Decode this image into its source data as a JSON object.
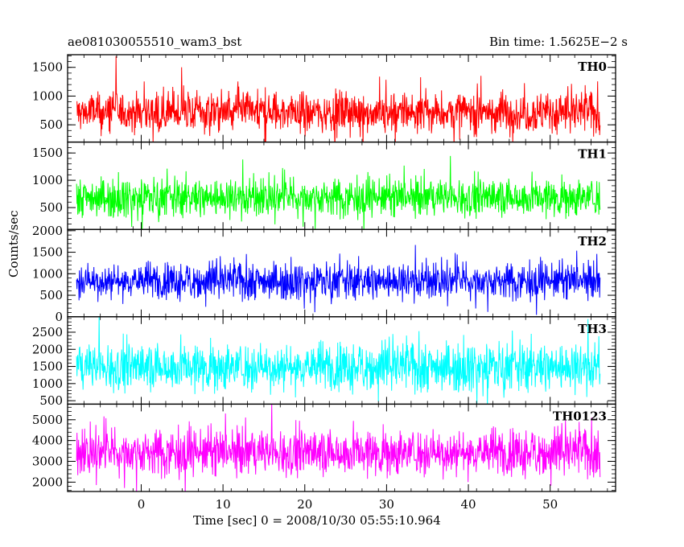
{
  "chart_data": {
    "type": "line",
    "title": "ae081030055510_wam3_bst",
    "bin_time_label": "Bin time: 1.5625E−2 s",
    "xlabel": "Time [sec] 0 = 2008/10/30 05:55:10.964",
    "ylabel": "Counts/sec",
    "xlim": [
      -9,
      58
    ],
    "x_ticks": [
      0,
      10,
      20,
      30,
      40,
      50
    ],
    "x_data_range": [
      -7.9,
      56.1
    ],
    "grid": false,
    "panels": [
      {
        "name": "TH0",
        "color": "#ff0000",
        "ylim": [
          200,
          1720
        ],
        "yticks": [
          500,
          1000,
          1500
        ],
        "mean": 720,
        "spread": 260
      },
      {
        "name": "TH1",
        "color": "#00ff00",
        "ylim": [
          100,
          1700
        ],
        "yticks": [
          500,
          1000,
          1500
        ],
        "mean": 690,
        "spread": 250
      },
      {
        "name": "TH2",
        "color": "#0000ff",
        "ylim": [
          0,
          2030
        ],
        "yticks": [
          0,
          500,
          1000,
          1500,
          2000
        ],
        "mean": 840,
        "spread": 300
      },
      {
        "name": "TH3",
        "color": "#00ffff",
        "ylim": [
          400,
          2950
        ],
        "yticks": [
          500,
          1000,
          1500,
          2000,
          2500
        ],
        "mean": 1500,
        "spread": 500
      },
      {
        "name": "TH0123",
        "color": "#ff00ff",
        "ylim": [
          1550,
          5750
        ],
        "yticks": [
          2000,
          3000,
          4000,
          5000
        ],
        "mean": 3450,
        "spread": 800
      }
    ]
  }
}
